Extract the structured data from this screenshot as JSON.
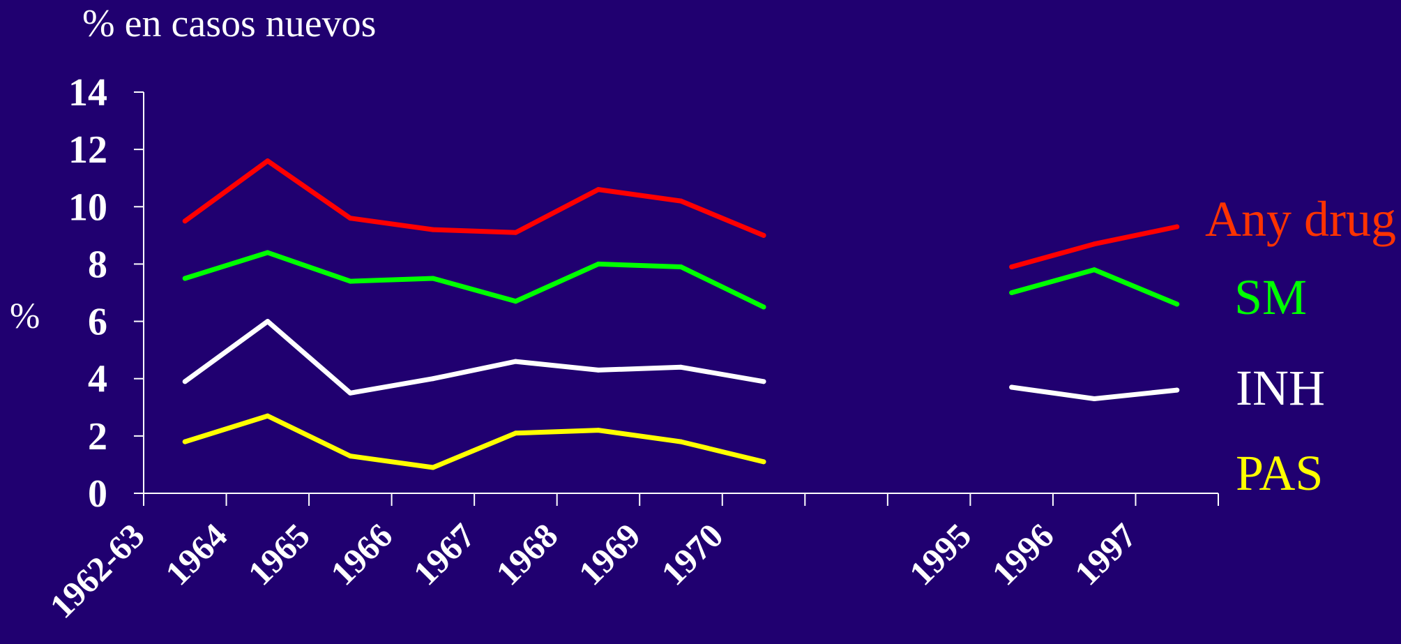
{
  "chart_data": {
    "type": "line",
    "title": "% en casos nuevos",
    "ylabel": "%",
    "ylim": [
      0,
      14
    ],
    "yticks": [
      "0",
      "2",
      "4",
      "6",
      "8",
      "10",
      "12",
      "14"
    ],
    "categories": [
      "1962-63",
      "1964",
      "1965",
      "1966",
      "1967",
      "1968",
      "1969",
      "1970",
      "",
      "",
      "1995",
      "1996",
      "1997"
    ],
    "grid": false,
    "legend_placement": "right",
    "series": [
      {
        "name": "Any drug",
        "color": "#ff0000",
        "label_color": "#ff3300",
        "values": [
          9.5,
          11.6,
          9.6,
          9.2,
          9.1,
          10.6,
          10.2,
          9.0,
          null,
          null,
          7.9,
          8.7,
          9.3
        ]
      },
      {
        "name": "SM",
        "color": "#00ff00",
        "label_color": "#00ff00",
        "values": [
          7.5,
          8.4,
          7.4,
          7.5,
          6.7,
          8.0,
          7.9,
          6.5,
          null,
          null,
          7.0,
          7.8,
          6.6
        ]
      },
      {
        "name": "INH",
        "color": "#ffffff",
        "label_color": "#ffffff",
        "values": [
          3.9,
          6.0,
          3.5,
          4.0,
          4.6,
          4.3,
          4.4,
          3.9,
          null,
          null,
          3.7,
          3.3,
          3.6
        ]
      },
      {
        "name": "PAS",
        "color": "#ffff00",
        "label_color": "#ffff00",
        "values": [
          1.8,
          2.7,
          1.3,
          0.9,
          2.1,
          2.2,
          1.8,
          1.1,
          null,
          null,
          null,
          null,
          null
        ]
      }
    ]
  }
}
